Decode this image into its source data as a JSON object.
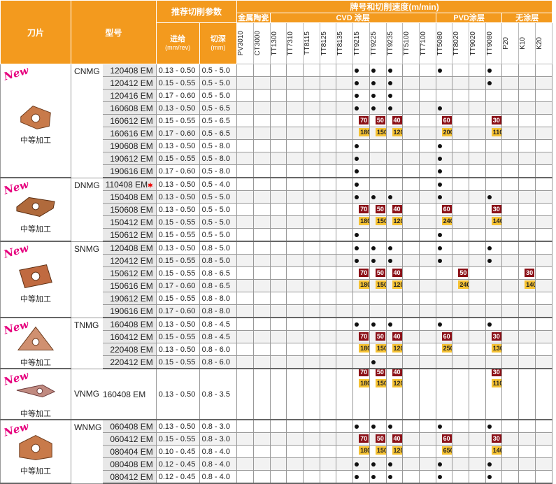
{
  "header": {
    "col_tool": "刀片",
    "col_model": "型号",
    "params_title": "推荐切削参数",
    "feed_label": "进给",
    "feed_unit": "(mm/rev)",
    "depth_label": "切深",
    "depth_unit": "(mm)",
    "grades_title": "牌号和切削速度(m/min)",
    "group_cermet": "金属陶瓷",
    "group_cvd": "CVD 涂层",
    "group_pvd": "PVD涂层",
    "group_uncoated": "无涂层",
    "grades": [
      "PV3010",
      "CT3000",
      "TT1300",
      "TT7310",
      "TT8115",
      "TT8125",
      "TT8135",
      "TT9215",
      "TT9225",
      "TT9235",
      "TT5100",
      "TT7100",
      "TT5080",
      "TT8020",
      "TT9020",
      "TT9080",
      "P20",
      "K10",
      "K20"
    ]
  },
  "colors": {
    "header": "#f39a1e",
    "new_badge": "#e6007e",
    "red_badge": "#8b1017",
    "yellow_badge": "#f6c233"
  },
  "groups": [
    {
      "new": "New",
      "label": "中等加工",
      "series": "CNMG",
      "icon": "cnmg-insert-icon",
      "rows": [
        {
          "model": "120408 EM",
          "feed": "0.13 - 0.50",
          "depth": "0.5 - 5.0",
          "cells": {
            "7": "dot",
            "8": "dot",
            "9": "dot",
            "12": "dot",
            "15": "dot"
          }
        },
        {
          "model": "120412 EM",
          "feed": "0.15 - 0.55",
          "depth": "0.5 - 5.0",
          "cells": {
            "7": "dot",
            "8": "dot",
            "9": "dot",
            "15": "dot"
          }
        },
        {
          "model": "120416 EM",
          "feed": "0.17 - 0.60",
          "depth": "0.5 - 5.0",
          "cells": {
            "7": "dot",
            "8": "dot",
            "9": "dot"
          }
        },
        {
          "model": "160608 EM",
          "feed": "0.13 - 0.50",
          "depth": "0.5 - 6.5",
          "cells": {
            "7": "dot",
            "8": "dot",
            "9": "dot",
            "12": "dot"
          }
        },
        {
          "model": "160612 EM",
          "feed": "0.15 - 0.55",
          "depth": "0.5 - 6.5",
          "cells": {
            "7": "r:70",
            "8": "r:50",
            "9": "r:40",
            "12": "r:60",
            "15": "r:30"
          }
        },
        {
          "model": "160616 EM",
          "feed": "0.17 - 0.60",
          "depth": "0.5 - 6.5",
          "cells": {
            "7": "y:180",
            "8": "y:150",
            "9": "y:120",
            "12": "y:200",
            "15": "y:110"
          }
        },
        {
          "model": "190608 EM",
          "feed": "0.13 - 0.50",
          "depth": "0.5 - 8.0",
          "cells": {
            "7": "dot",
            "12": "dot"
          }
        },
        {
          "model": "190612 EM",
          "feed": "0.15 - 0.55",
          "depth": "0.5 - 8.0",
          "cells": {
            "7": "dot",
            "12": "dot"
          }
        },
        {
          "model": "190616 EM",
          "feed": "0.17 - 0.60",
          "depth": "0.5 - 8.0",
          "cells": {
            "7": "dot",
            "12": "dot"
          }
        }
      ]
    },
    {
      "new": "New",
      "label": "中等加工",
      "series": "DNMG",
      "icon": "dnmg-insert-icon",
      "rows": [
        {
          "model": "110408 EM",
          "star": "✱",
          "feed": "0.13 - 0.50",
          "depth": "0.5 - 4.0",
          "cells": {
            "7": "dot",
            "12": "dot"
          }
        },
        {
          "model": "150408 EM",
          "feed": "0.13 - 0.50",
          "depth": "0.5 - 5.0",
          "cells": {
            "7": "dot",
            "8": "dot",
            "9": "dot",
            "12": "dot",
            "15": "dot"
          }
        },
        {
          "model": "150608 EM",
          "feed": "0.13 - 0.50",
          "depth": "0.5 - 5.0",
          "cells": {
            "7": "r:70",
            "8": "r:50",
            "9": "r:40",
            "12": "r:60",
            "15": "r:30"
          }
        },
        {
          "model": "150412 EM",
          "feed": "0.15 - 0.55",
          "depth": "0.5 - 5.0",
          "cells": {
            "7": "y:180",
            "8": "y:150",
            "9": "y:120",
            "12": "y:240",
            "15": "y:140"
          }
        },
        {
          "model": "150612 EM",
          "feed": "0.15 - 0.55",
          "depth": "0.5 - 5.0",
          "cells": {
            "7": "dot",
            "12": "dot"
          }
        }
      ]
    },
    {
      "new": "New",
      "label": "中等加工",
      "series": "SNMG",
      "icon": "snmg-insert-icon",
      "rows": [
        {
          "model": "120408 EM",
          "feed": "0.13 - 0.50",
          "depth": "0.8 - 5.0",
          "cells": {
            "7": "dot",
            "8": "dot",
            "9": "dot",
            "12": "dot",
            "15": "dot"
          }
        },
        {
          "model": "120412 EM",
          "feed": "0.15 - 0.55",
          "depth": "0.8 - 5.0",
          "cells": {
            "7": "dot",
            "8": "dot",
            "9": "dot",
            "12": "dot",
            "15": "dot"
          }
        },
        {
          "model": "150612 EM",
          "feed": "0.15 - 0.55",
          "depth": "0.8 - 6.5",
          "cells": {
            "7": "r:70",
            "8": "r:50",
            "9": "r:40",
            "13": "r:50",
            "17": "r:30"
          }
        },
        {
          "model": "150616 EM",
          "feed": "0.17 - 0.60",
          "depth": "0.8 - 6.5",
          "cells": {
            "7": "y:180",
            "8": "y:150",
            "9": "y:120",
            "13": "y:240",
            "17": "y:140"
          }
        },
        {
          "model": "190612 EM",
          "feed": "0.15 - 0.55",
          "depth": "0.8 - 8.0",
          "cells": {}
        },
        {
          "model": "190616 EM",
          "feed": "0.17 - 0.60",
          "depth": "0.8 - 8.0",
          "cells": {}
        }
      ]
    },
    {
      "new": "New",
      "label": "中等加工",
      "series": "TNMG",
      "icon": "tnmg-insert-icon",
      "rows": [
        {
          "model": "160408 EM",
          "feed": "0.13 - 0.50",
          "depth": "0.8 - 4.5",
          "cells": {
            "7": "dot",
            "8": "dot",
            "9": "dot",
            "12": "dot",
            "15": "dot"
          }
        },
        {
          "model": "160412 EM",
          "feed": "0.15 - 0.55",
          "depth": "0.8 - 4.5",
          "cells": {
            "7": "r:70",
            "8": "r:50",
            "9": "r:40",
            "12": "r:60",
            "15": "r:30"
          }
        },
        {
          "model": "220408 EM",
          "feed": "0.13 - 0.50",
          "depth": "0.8 - 6.0",
          "cells": {
            "7": "y:180",
            "8": "y:150",
            "9": "y:120",
            "12": "y:250",
            "15": "y:130"
          }
        },
        {
          "model": "220412 EM",
          "feed": "0.15 - 0.55",
          "depth": "0.8 - 6.0",
          "cells": {
            "8": "dot"
          }
        }
      ]
    },
    {
      "new": "New",
      "label": "中等加工",
      "series": "VNMG",
      "icon": "vnmg-insert-icon",
      "rows": [
        {
          "model": "160408 EM",
          "feed": "0.13 - 0.50",
          "depth": "0.8 - 3.5",
          "cells": {
            "7": "r:70",
            "8": "r:50",
            "9": "r:40",
            "15": "r:30"
          },
          "span": true
        }
      ]
    },
    {
      "new": "New",
      "label": "中等加工",
      "series": "WNMG",
      "icon": "wnmg-insert-icon",
      "rows": [
        {
          "model": "060408 EM",
          "feed": "0.13 - 0.50",
          "depth": "0.8 - 3.0",
          "cells": {
            "7": "dot",
            "8": "dot",
            "9": "dot",
            "12": "dot",
            "15": "dot"
          }
        },
        {
          "model": "060412 EM",
          "feed": "0.15 - 0.55",
          "depth": "0.8 - 3.0",
          "cells": {
            "7": "r:70",
            "8": "r:50",
            "9": "r:40",
            "12": "r:60",
            "15": "r:30"
          }
        },
        {
          "model": "080404 EM",
          "feed": "0.10 - 0.45",
          "depth": "0.8 - 4.0",
          "cells": {
            "7": "y:180",
            "8": "y:150",
            "9": "y:120",
            "12": "y:650",
            "15": "y:140"
          }
        },
        {
          "model": "080408 EM",
          "feed": "0.12 - 0.45",
          "depth": "0.8 - 4.0",
          "cells": {
            "7": "dot",
            "8": "dot",
            "9": "dot",
            "12": "dot",
            "15": "dot"
          }
        },
        {
          "model": "080412 EM",
          "feed": "0.12 - 0.45",
          "depth": "0.8 - 4.0",
          "cells": {
            "7": "dot",
            "8": "dot",
            "9": "dot",
            "12": "dot",
            "15": "dot"
          }
        }
      ]
    }
  ]
}
